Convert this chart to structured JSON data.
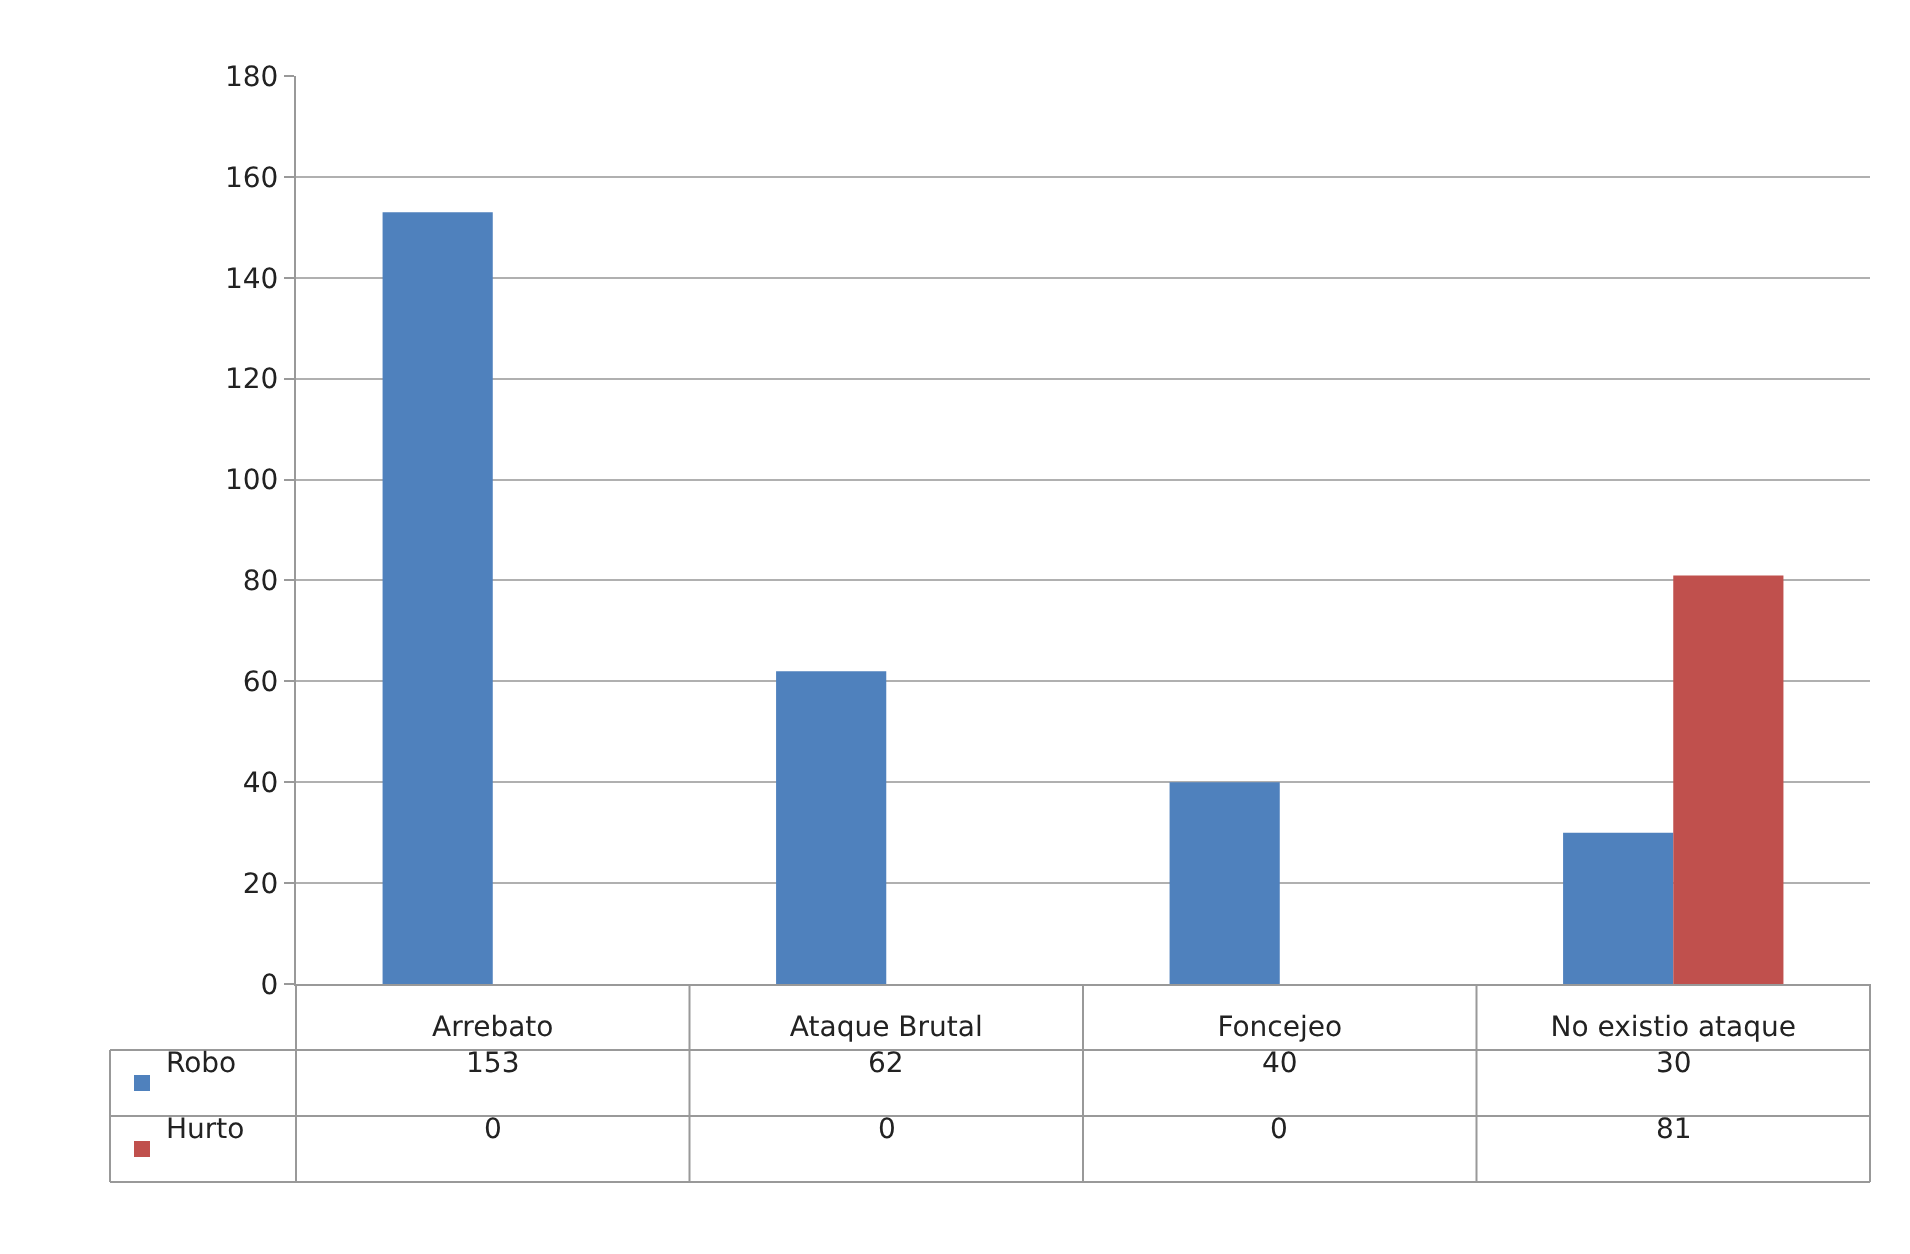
{
  "chart_data": {
    "type": "bar",
    "categories": [
      "Arrebato",
      "Ataque Brutal",
      "Foncejeo",
      "No existio ataque"
    ],
    "series": [
      {
        "name": "Robo",
        "color": "#4f81bd",
        "values": [
          153,
          62,
          40,
          30
        ]
      },
      {
        "name": "Hurto",
        "color": "#c0504d",
        "values": [
          0,
          0,
          0,
          81
        ]
      }
    ],
    "ylim": [
      0,
      180
    ],
    "yticks": [
      0,
      20,
      40,
      60,
      80,
      100,
      120,
      140,
      160,
      180
    ],
    "grid": "y",
    "data_labels": true,
    "legend": "bottom left"
  }
}
